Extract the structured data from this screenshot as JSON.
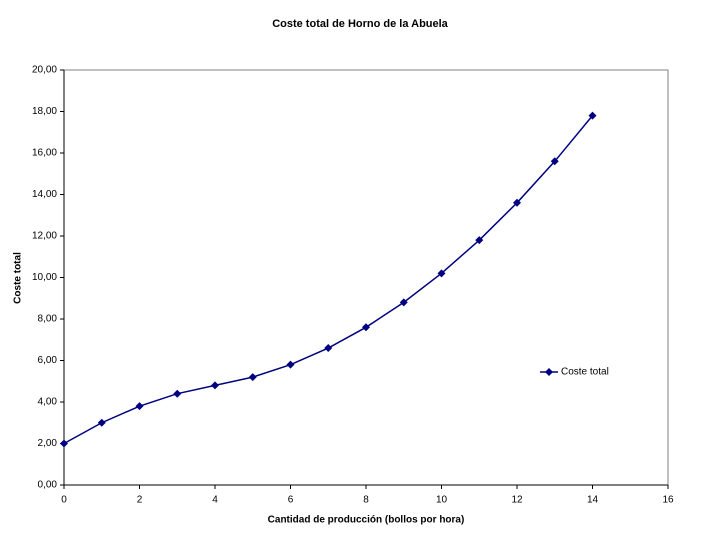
{
  "chart_data": {
    "type": "line",
    "title": "Coste total de Horno de la Abuela",
    "x_label": "Cantidad de producción (bollos por hora)",
    "y_label": "Coste total",
    "x": [
      0,
      1,
      2,
      3,
      4,
      5,
      6,
      7,
      8,
      9,
      10,
      11,
      12,
      13,
      14
    ],
    "series": [
      {
        "name": "Coste total",
        "color": "#000080",
        "values": [
          2.0,
          3.0,
          3.8,
          4.4,
          4.8,
          5.2,
          5.8,
          6.6,
          7.6,
          8.8,
          10.2,
          11.8,
          13.6,
          15.6,
          17.8
        ]
      }
    ],
    "xlim": [
      0,
      16
    ],
    "xticks": [
      0,
      2,
      4,
      6,
      8,
      10,
      12,
      14,
      16
    ],
    "ylim": [
      0,
      20
    ],
    "yticks": [
      {
        "value": 0,
        "label": "0,00"
      },
      {
        "value": 2,
        "label": "2,00"
      },
      {
        "value": 4,
        "label": "4,00"
      },
      {
        "value": 6,
        "label": "6,00"
      },
      {
        "value": 8,
        "label": "8,00"
      },
      {
        "value": 10,
        "label": "10,00"
      },
      {
        "value": 12,
        "label": "12,00"
      },
      {
        "value": 14,
        "label": "14,00"
      },
      {
        "value": 16,
        "label": "16,00"
      },
      {
        "value": 18,
        "label": "18,00"
      },
      {
        "value": 20,
        "label": "20,00"
      }
    ],
    "grid": false,
    "legend": "right"
  }
}
